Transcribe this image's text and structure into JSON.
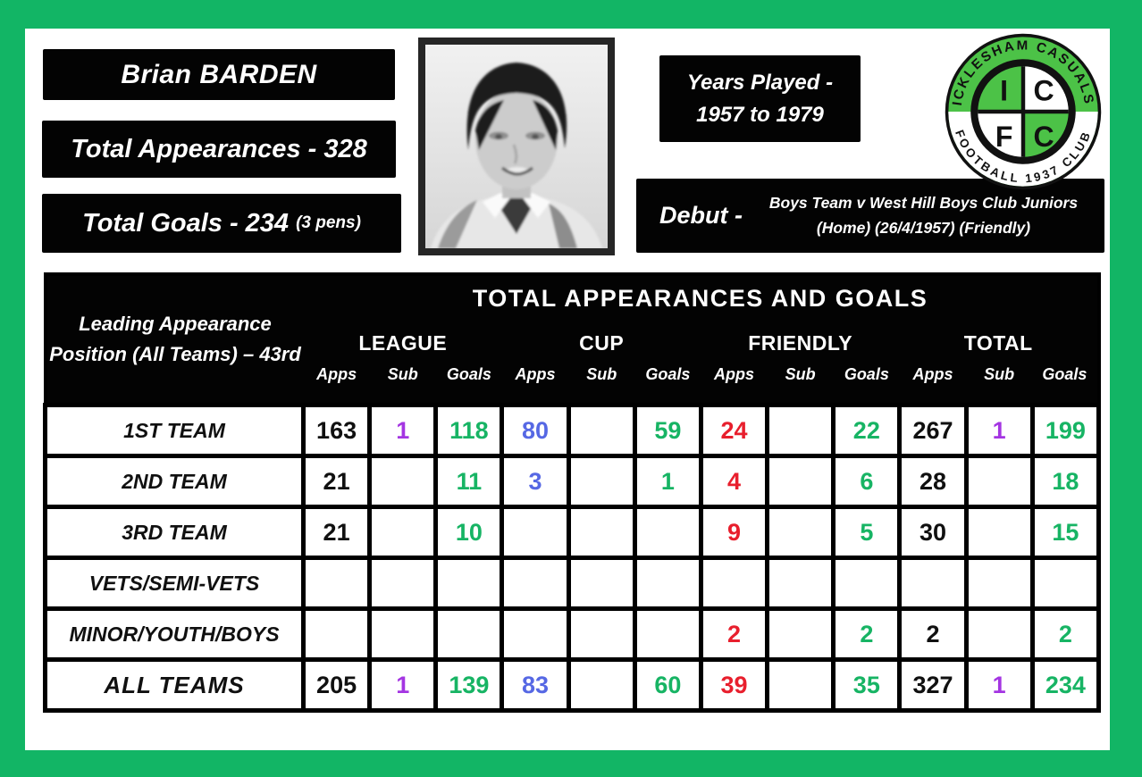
{
  "player": {
    "name": "Brian BARDEN",
    "total_appearances": "Total Appearances - 328",
    "total_goals": "Total Goals - 234",
    "total_goals_note": "(3 pens)",
    "years_played": {
      "line1": "Years Played -",
      "line2": "1957 to 1979"
    },
    "debut": {
      "label": "Debut -",
      "line1": "Boys Team v West Hill Boys Club Juniors",
      "line2": "(Home) (26/4/1957) (Friendly)"
    }
  },
  "club_badge": {
    "top_text": "ICKLESHAM CASUALS",
    "bottom_text": "FOOTBALL 1937 CLUB",
    "quadrant_letters": [
      "I",
      "C",
      "F",
      "C"
    ]
  },
  "table": {
    "corner_note": "Leading Appearance Position (All Teams) – 43rd",
    "title": "TOTAL APPEARANCES AND GOALS",
    "groups": [
      {
        "label": "LEAGUE"
      },
      {
        "label": "CUP"
      },
      {
        "label": "FRIENDLY"
      },
      {
        "label": "TOTAL"
      }
    ],
    "sub_headers": [
      "Apps",
      "Sub",
      "Goals"
    ],
    "rows": [
      {
        "team": "1ST TEAM",
        "is_total": false,
        "values": [
          "163",
          "1",
          "118",
          "80",
          "",
          "59",
          "24",
          "",
          "22",
          "267",
          "1",
          "199"
        ]
      },
      {
        "team": "2ND TEAM",
        "is_total": false,
        "values": [
          "21",
          "",
          "11",
          "3",
          "",
          "1",
          "4",
          "",
          "6",
          "28",
          "",
          "18"
        ]
      },
      {
        "team": "3RD TEAM",
        "is_total": false,
        "values": [
          "21",
          "",
          "10",
          "",
          "",
          "",
          "9",
          "",
          "5",
          "30",
          "",
          "15"
        ]
      },
      {
        "team": "VETS/SEMI-VETS",
        "is_total": false,
        "values": [
          "",
          "",
          "",
          "",
          "",
          "",
          "",
          "",
          "",
          "",
          "",
          ""
        ]
      },
      {
        "team": "MINOR/YOUTH/BOYS",
        "is_total": false,
        "values": [
          "",
          "",
          "",
          "",
          "",
          "",
          "2",
          "",
          "2",
          "2",
          "",
          "2"
        ]
      },
      {
        "team": "ALL TEAMS",
        "is_total": true,
        "values": [
          "205",
          "1",
          "139",
          "83",
          "",
          "60",
          "39",
          "",
          "35",
          "327",
          "1",
          "234"
        ]
      }
    ]
  },
  "colors": {
    "frame_green": "#12b565",
    "badge_green": "#4cc247",
    "apps_black": "#101010",
    "sub_purple": "#a435e2",
    "goals_green": "#17b464",
    "cup_apps_blue": "#5668e4",
    "friendly_apps_red": "#e81f2d"
  }
}
